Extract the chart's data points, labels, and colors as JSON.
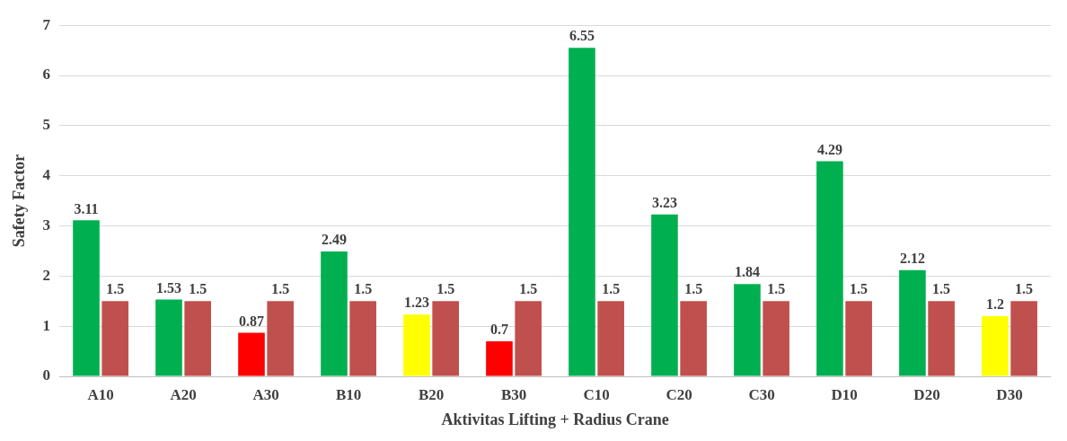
{
  "chart_data": {
    "type": "bar",
    "xlabel": "Aktivitas Lifting + Radius Crane",
    "ylabel": "Safety Factor",
    "categories": [
      "A10",
      "A20",
      "A30",
      "B10",
      "B20",
      "B30",
      "C10",
      "C20",
      "C30",
      "D10",
      "D20",
      "D30"
    ],
    "series": [
      {
        "colors": [
          "#00b050",
          "#00b050",
          "#ff0000",
          "#00b050",
          "#ffff00",
          "#ff0000",
          "#00b050",
          "#00b050",
          "#00b050",
          "#00b050",
          "#00b050",
          "#ffff00"
        ],
        "values": [
          3.11,
          1.53,
          0.87,
          2.49,
          1.23,
          0.7,
          6.55,
          3.23,
          1.84,
          4.29,
          2.12,
          1.2
        ]
      },
      {
        "color": "#c0504d",
        "values": [
          1.5,
          1.5,
          1.5,
          1.5,
          1.5,
          1.5,
          1.5,
          1.5,
          1.5,
          1.5,
          1.5,
          1.5
        ]
      }
    ],
    "ylim": [
      0,
      7
    ],
    "yticks": [
      0,
      1,
      2,
      3,
      4,
      5,
      6,
      7
    ],
    "grid": "y",
    "legend": false,
    "data_labels": true
  }
}
